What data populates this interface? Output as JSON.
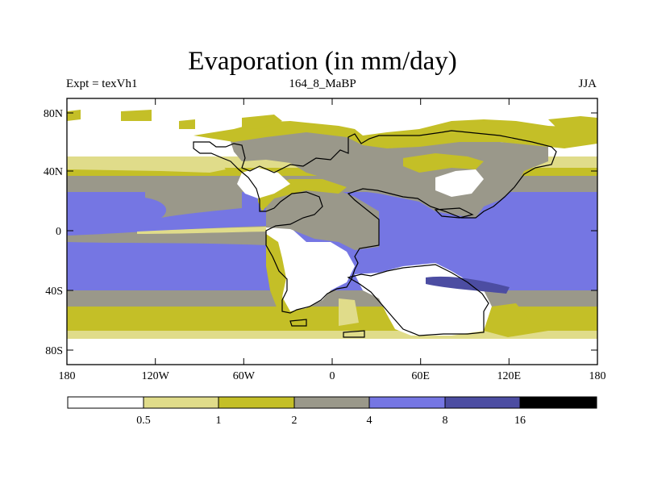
{
  "title": "Evaporation (in mm/day)",
  "header": {
    "left": "Expt = texVh1",
    "center": "164_8_MaBP",
    "right": "JJA"
  },
  "axes": {
    "lat_ticks": [
      "80N",
      "40N",
      "0",
      "40S",
      "80S"
    ],
    "lon_ticks": [
      "180",
      "120W",
      "60W",
      "0",
      "60E",
      "120E",
      "180"
    ]
  },
  "colorbar": {
    "labels": [
      "0.5",
      "1",
      "2",
      "4",
      "8",
      "16"
    ],
    "colors": [
      "#ffffff",
      "#e0dc8a",
      "#c4bf27",
      "#9a988a",
      "#7576e3",
      "#4c4da2",
      "#000000"
    ]
  },
  "map_colors": {
    "ocean_low": "#ffffff",
    "pale": "#e0dc8a",
    "olive": "#c4bf27",
    "gray": "#9a988a",
    "blue": "#7576e3",
    "darkblue": "#4c4da2"
  }
}
